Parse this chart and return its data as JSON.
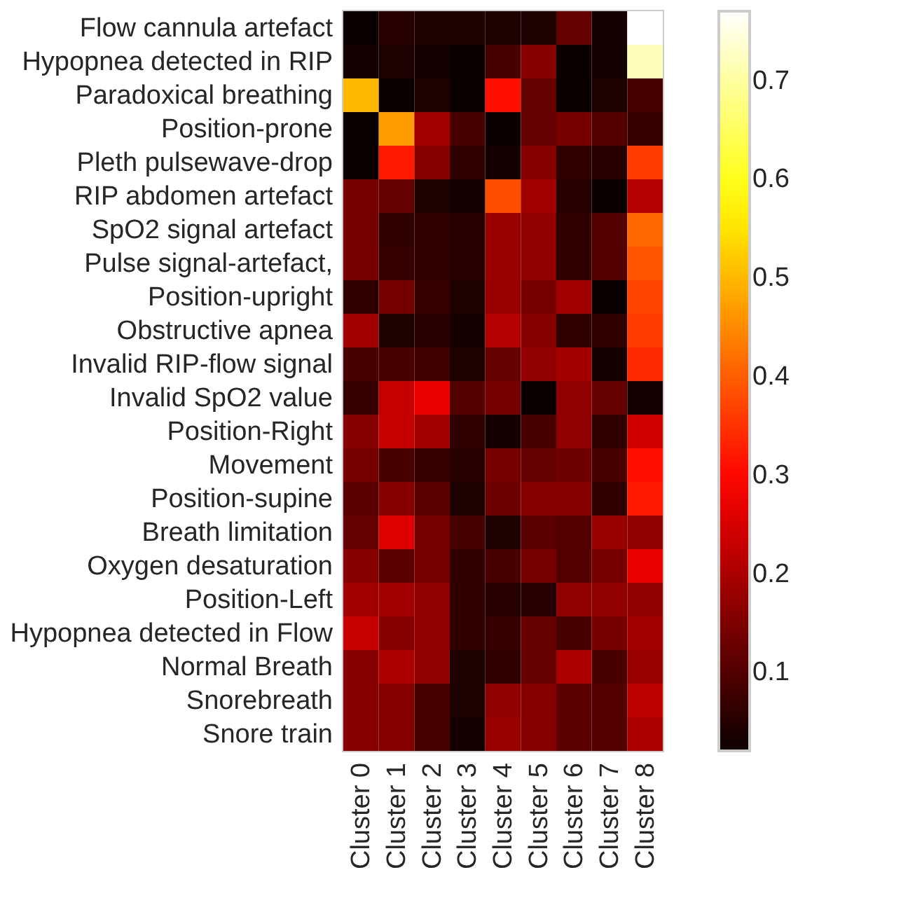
{
  "chart_data": {
    "type": "heatmap",
    "categories": [
      "Cluster 0",
      "Cluster 1",
      "Cluster 2",
      "Cluster 3",
      "Cluster 4",
      "Cluster 5",
      "Cluster 6",
      "Cluster 7",
      "Cluster 8"
    ],
    "y_categories": [
      "Flow cannula artefact",
      "Hypopnea detected in RIP",
      "Paradoxical breathing",
      "Position-prone",
      "Pleth pulsewave-drop",
      "RIP abdomen artefact",
      "SpO2 signal artefact",
      "Pulse signal-artefact,",
      "Position-upright",
      "Obstructive apnea",
      "Invalid RIP-flow signal",
      "Invalid SpO2 value",
      "Position-Right",
      "Movement",
      "Position-supine",
      "Breath limitation",
      "Oxygen desaturation",
      "Position-Left",
      "Hypopnea detected in Flow",
      "Normal Breath",
      "Snorebreath",
      "Snore train"
    ],
    "cells": [
      [
        0.02,
        0.05,
        0.04,
        0.04,
        0.04,
        0.04,
        0.12,
        0.03,
        0.77
      ],
      [
        0.03,
        0.04,
        0.03,
        0.02,
        0.09,
        0.16,
        0.02,
        0.03,
        0.72
      ],
      [
        0.5,
        0.02,
        0.04,
        0.02,
        0.31,
        0.12,
        0.02,
        0.04,
        0.09
      ],
      [
        0.02,
        0.47,
        0.19,
        0.09,
        0.02,
        0.12,
        0.14,
        0.1,
        0.07
      ],
      [
        0.02,
        0.32,
        0.16,
        0.06,
        0.03,
        0.16,
        0.06,
        0.05,
        0.36
      ],
      [
        0.14,
        0.12,
        0.04,
        0.03,
        0.38,
        0.19,
        0.05,
        0.02,
        0.21
      ],
      [
        0.14,
        0.06,
        0.06,
        0.05,
        0.18,
        0.17,
        0.06,
        0.1,
        0.41
      ],
      [
        0.14,
        0.07,
        0.06,
        0.05,
        0.18,
        0.17,
        0.06,
        0.1,
        0.39
      ],
      [
        0.06,
        0.14,
        0.07,
        0.04,
        0.18,
        0.14,
        0.19,
        0.02,
        0.37
      ],
      [
        0.19,
        0.04,
        0.05,
        0.03,
        0.21,
        0.16,
        0.06,
        0.06,
        0.36
      ],
      [
        0.09,
        0.09,
        0.08,
        0.04,
        0.12,
        0.17,
        0.19,
        0.03,
        0.34
      ],
      [
        0.07,
        0.23,
        0.27,
        0.1,
        0.14,
        0.02,
        0.17,
        0.12,
        0.03
      ],
      [
        0.16,
        0.23,
        0.19,
        0.06,
        0.03,
        0.09,
        0.17,
        0.06,
        0.24
      ],
      [
        0.14,
        0.09,
        0.07,
        0.05,
        0.14,
        0.12,
        0.13,
        0.09,
        0.31
      ],
      [
        0.11,
        0.16,
        0.11,
        0.04,
        0.13,
        0.16,
        0.16,
        0.06,
        0.32
      ],
      [
        0.12,
        0.26,
        0.14,
        0.09,
        0.04,
        0.11,
        0.1,
        0.18,
        0.17
      ],
      [
        0.16,
        0.11,
        0.14,
        0.06,
        0.09,
        0.14,
        0.1,
        0.14,
        0.27
      ],
      [
        0.19,
        0.19,
        0.17,
        0.06,
        0.05,
        0.05,
        0.17,
        0.17,
        0.17
      ],
      [
        0.23,
        0.16,
        0.17,
        0.06,
        0.07,
        0.12,
        0.09,
        0.14,
        0.19
      ],
      [
        0.16,
        0.2,
        0.17,
        0.04,
        0.06,
        0.12,
        0.2,
        0.09,
        0.18
      ],
      [
        0.16,
        0.16,
        0.09,
        0.04,
        0.17,
        0.16,
        0.11,
        0.1,
        0.22
      ],
      [
        0.16,
        0.16,
        0.09,
        0.03,
        0.18,
        0.16,
        0.11,
        0.1,
        0.2
      ]
    ],
    "clim": [
      0.02,
      0.77
    ],
    "cticks": [
      0.1,
      0.2,
      0.3,
      0.4,
      0.5,
      0.6,
      0.7
    ]
  }
}
